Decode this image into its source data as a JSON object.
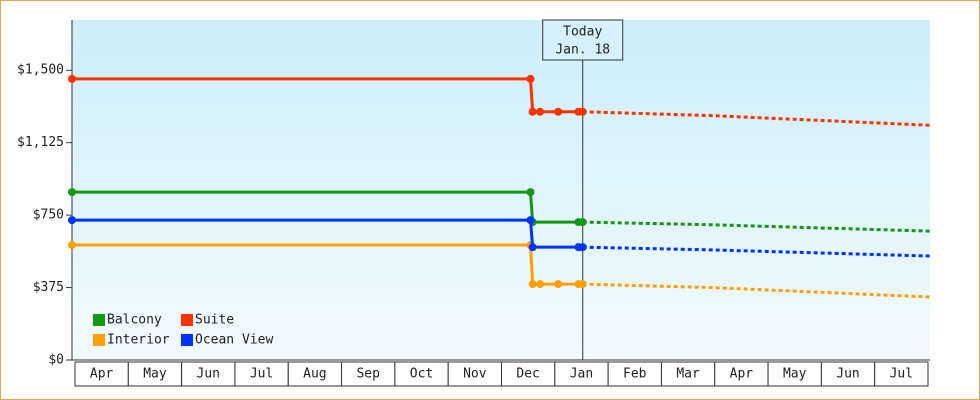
{
  "chart_data": {
    "type": "line",
    "categories": [
      "Apr",
      "May",
      "Jun",
      "Jul",
      "Aug",
      "Sep",
      "Oct",
      "Nov",
      "Dec",
      "Jan",
      "Feb",
      "Mar",
      "Apr",
      "May",
      "Jun",
      "Jul"
    ],
    "xlim": [
      0,
      16
    ],
    "ylim": [
      0,
      1760
    ],
    "yticks": [
      {
        "value": 0,
        "label": "$0"
      },
      {
        "value": 375,
        "label": "$375"
      },
      {
        "value": 750,
        "label": "$750"
      },
      {
        "value": 1125,
        "label": "$1,125"
      },
      {
        "value": 1500,
        "label": "$1,500"
      }
    ],
    "annotation": {
      "lines": [
        "Today",
        "Jan. 18"
      ],
      "x": 9.58
    },
    "legend": "lower left",
    "series": [
      {
        "name": "Balcony",
        "color": "#119911",
        "x": [
          0,
          8.6,
          8.64,
          9.5,
          9.58
        ],
        "values": [
          869,
          869,
          714,
          714,
          714
        ],
        "forecast": {
          "x": [
            9.58,
            12,
            16.1
          ],
          "values": [
            714,
            700,
            667
          ]
        }
      },
      {
        "name": "Suite",
        "color": "#ff3300",
        "x": [
          0,
          8.6,
          8.64,
          8.78,
          9.12,
          9.5,
          9.58
        ],
        "values": [
          1455,
          1455,
          1285,
          1285,
          1285,
          1285,
          1285
        ],
        "forecast": {
          "x": [
            9.58,
            12,
            16.1
          ],
          "values": [
            1285,
            1265,
            1215
          ]
        }
      },
      {
        "name": "Interior",
        "color": "#ff9f00",
        "x": [
          0,
          8.6,
          8.64,
          8.78,
          9.12,
          9.5,
          9.58
        ],
        "values": [
          595,
          595,
          393,
          393,
          393,
          393,
          393
        ],
        "forecast": {
          "x": [
            9.58,
            12,
            16.1
          ],
          "values": [
            393,
            375,
            326
          ]
        }
      },
      {
        "name": "Ocean View",
        "color": "#0033ff",
        "x": [
          0,
          8.6,
          8.64,
          9.5,
          9.58
        ],
        "values": [
          724,
          724,
          584,
          584,
          584
        ],
        "forecast": {
          "x": [
            9.58,
            12,
            16.1
          ],
          "values": [
            584,
            570,
            538
          ]
        }
      }
    ]
  }
}
